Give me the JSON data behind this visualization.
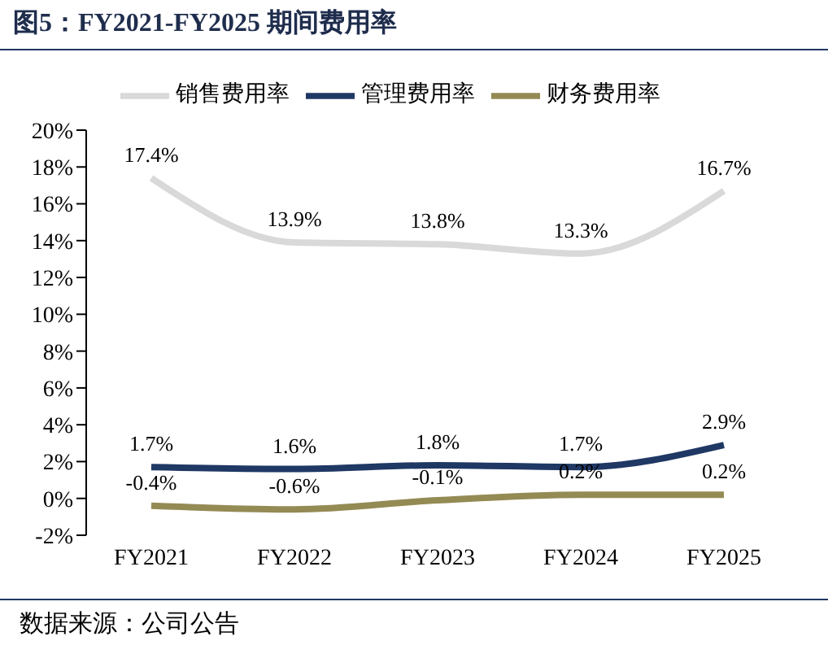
{
  "chart_data": {
    "type": "line",
    "title": "图5：FY2021-FY2025 期间费用率",
    "categories": [
      "FY2021",
      "FY2022",
      "FY2023",
      "FY2024",
      "FY2025"
    ],
    "series": [
      {
        "name": "销售费用率",
        "color": "#d9d9d9",
        "values": [
          17.4,
          13.9,
          13.8,
          13.3,
          16.7
        ],
        "value_labels": [
          "17.4%",
          "13.9%",
          "13.8%",
          "13.3%",
          "16.7%"
        ]
      },
      {
        "name": "管理费用率",
        "color": "#1f3864",
        "values": [
          1.7,
          1.6,
          1.8,
          1.7,
          2.9
        ],
        "value_labels": [
          "1.7%",
          "1.6%",
          "1.8%",
          "1.7%",
          "2.9%"
        ]
      },
      {
        "name": "财务费用率",
        "color": "#948a54",
        "values": [
          -0.4,
          -0.6,
          -0.1,
          0.2,
          0.2
        ],
        "value_labels": [
          "-0.4%",
          "-0.6%",
          "-0.1%",
          "0.2%",
          "0.2%"
        ]
      }
    ],
    "ylim": [
      -2,
      20
    ],
    "yticks": [
      {
        "value": -2,
        "label": "-2%"
      },
      {
        "value": 0,
        "label": "0%"
      },
      {
        "value": 2,
        "label": "2%"
      },
      {
        "value": 4,
        "label": "4%"
      },
      {
        "value": 6,
        "label": "6%"
      },
      {
        "value": 8,
        "label": "8%"
      },
      {
        "value": 10,
        "label": "10%"
      },
      {
        "value": 12,
        "label": "12%"
      },
      {
        "value": 14,
        "label": "14%"
      },
      {
        "value": 16,
        "label": "16%"
      },
      {
        "value": 18,
        "label": "18%"
      },
      {
        "value": 20,
        "label": "20%"
      }
    ],
    "grid": false,
    "legend": "top",
    "marker": "none",
    "line_style": "solid",
    "annotations": [
      "数据来源：公司公告"
    ]
  }
}
